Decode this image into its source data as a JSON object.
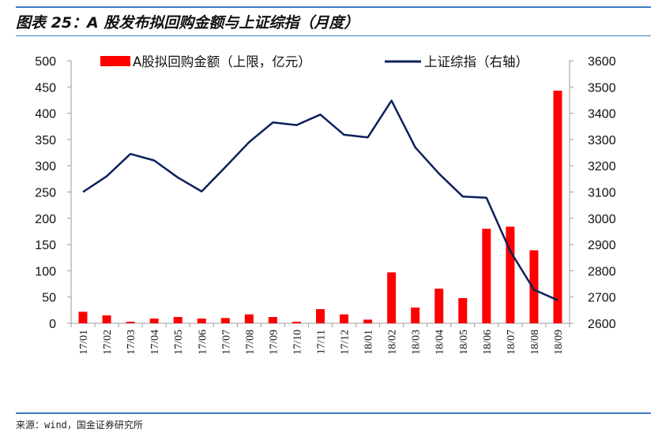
{
  "title": "图表 25：A 股发布拟回购金额与上证综指（月度）",
  "source": "来源：wind，国金证券研究所",
  "colors": {
    "bar": "#ff0000",
    "line": "#0d1f5c",
    "rule": "#3a7bbf"
  },
  "chart_data": {
    "type": "bar+line",
    "categories": [
      "17/01",
      "17/02",
      "17/03",
      "17/04",
      "17/05",
      "17/06",
      "17/07",
      "17/08",
      "17/09",
      "17/10",
      "17/11",
      "17/12",
      "18/01",
      "18/02",
      "18/03",
      "18/04",
      "18/05",
      "18/06",
      "18/07",
      "18/08",
      "18/09"
    ],
    "series": [
      {
        "name": "A股拟回购金额（上限，亿元）",
        "type": "bar",
        "axis": "left",
        "values": [
          22,
          15,
          3,
          9,
          12,
          9,
          10,
          17,
          12,
          3,
          27,
          17,
          7,
          97,
          30,
          66,
          48,
          180,
          184,
          139,
          443
        ]
      },
      {
        "name": "上证综指（右轴）",
        "type": "line",
        "axis": "right",
        "values": [
          3100,
          3160,
          3245,
          3220,
          3155,
          3102,
          3195,
          3290,
          3365,
          3355,
          3395,
          3318,
          3308,
          3448,
          3270,
          3170,
          3083,
          3078,
          2875,
          2728,
          2688
        ]
      }
    ],
    "y_left": {
      "lim": [
        0,
        500
      ],
      "ticks": [
        0,
        50,
        100,
        150,
        200,
        250,
        300,
        350,
        400,
        450,
        500
      ]
    },
    "y_right": {
      "lim": [
        2600,
        3600
      ],
      "ticks": [
        2600,
        2700,
        2800,
        2900,
        3000,
        3100,
        3200,
        3300,
        3400,
        3500,
        3600
      ]
    },
    "legend_position": "top",
    "grid": false
  }
}
